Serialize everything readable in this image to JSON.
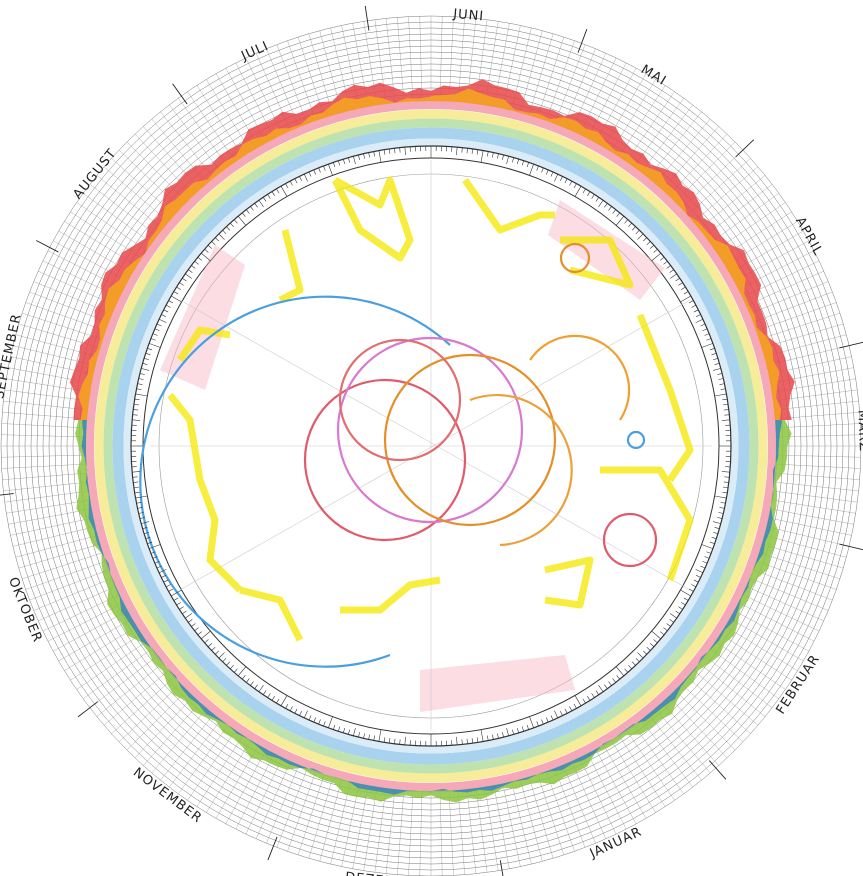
{
  "months": [
    "JUNI",
    "MAI",
    "APRIL",
    "MÄRZ",
    "FEBRUAR",
    "JANUAR",
    "DEZEMBER",
    "NOVEMBER",
    "OKTOBER",
    "SEPTEMBER",
    "AUGUST",
    "JULI"
  ]
}
